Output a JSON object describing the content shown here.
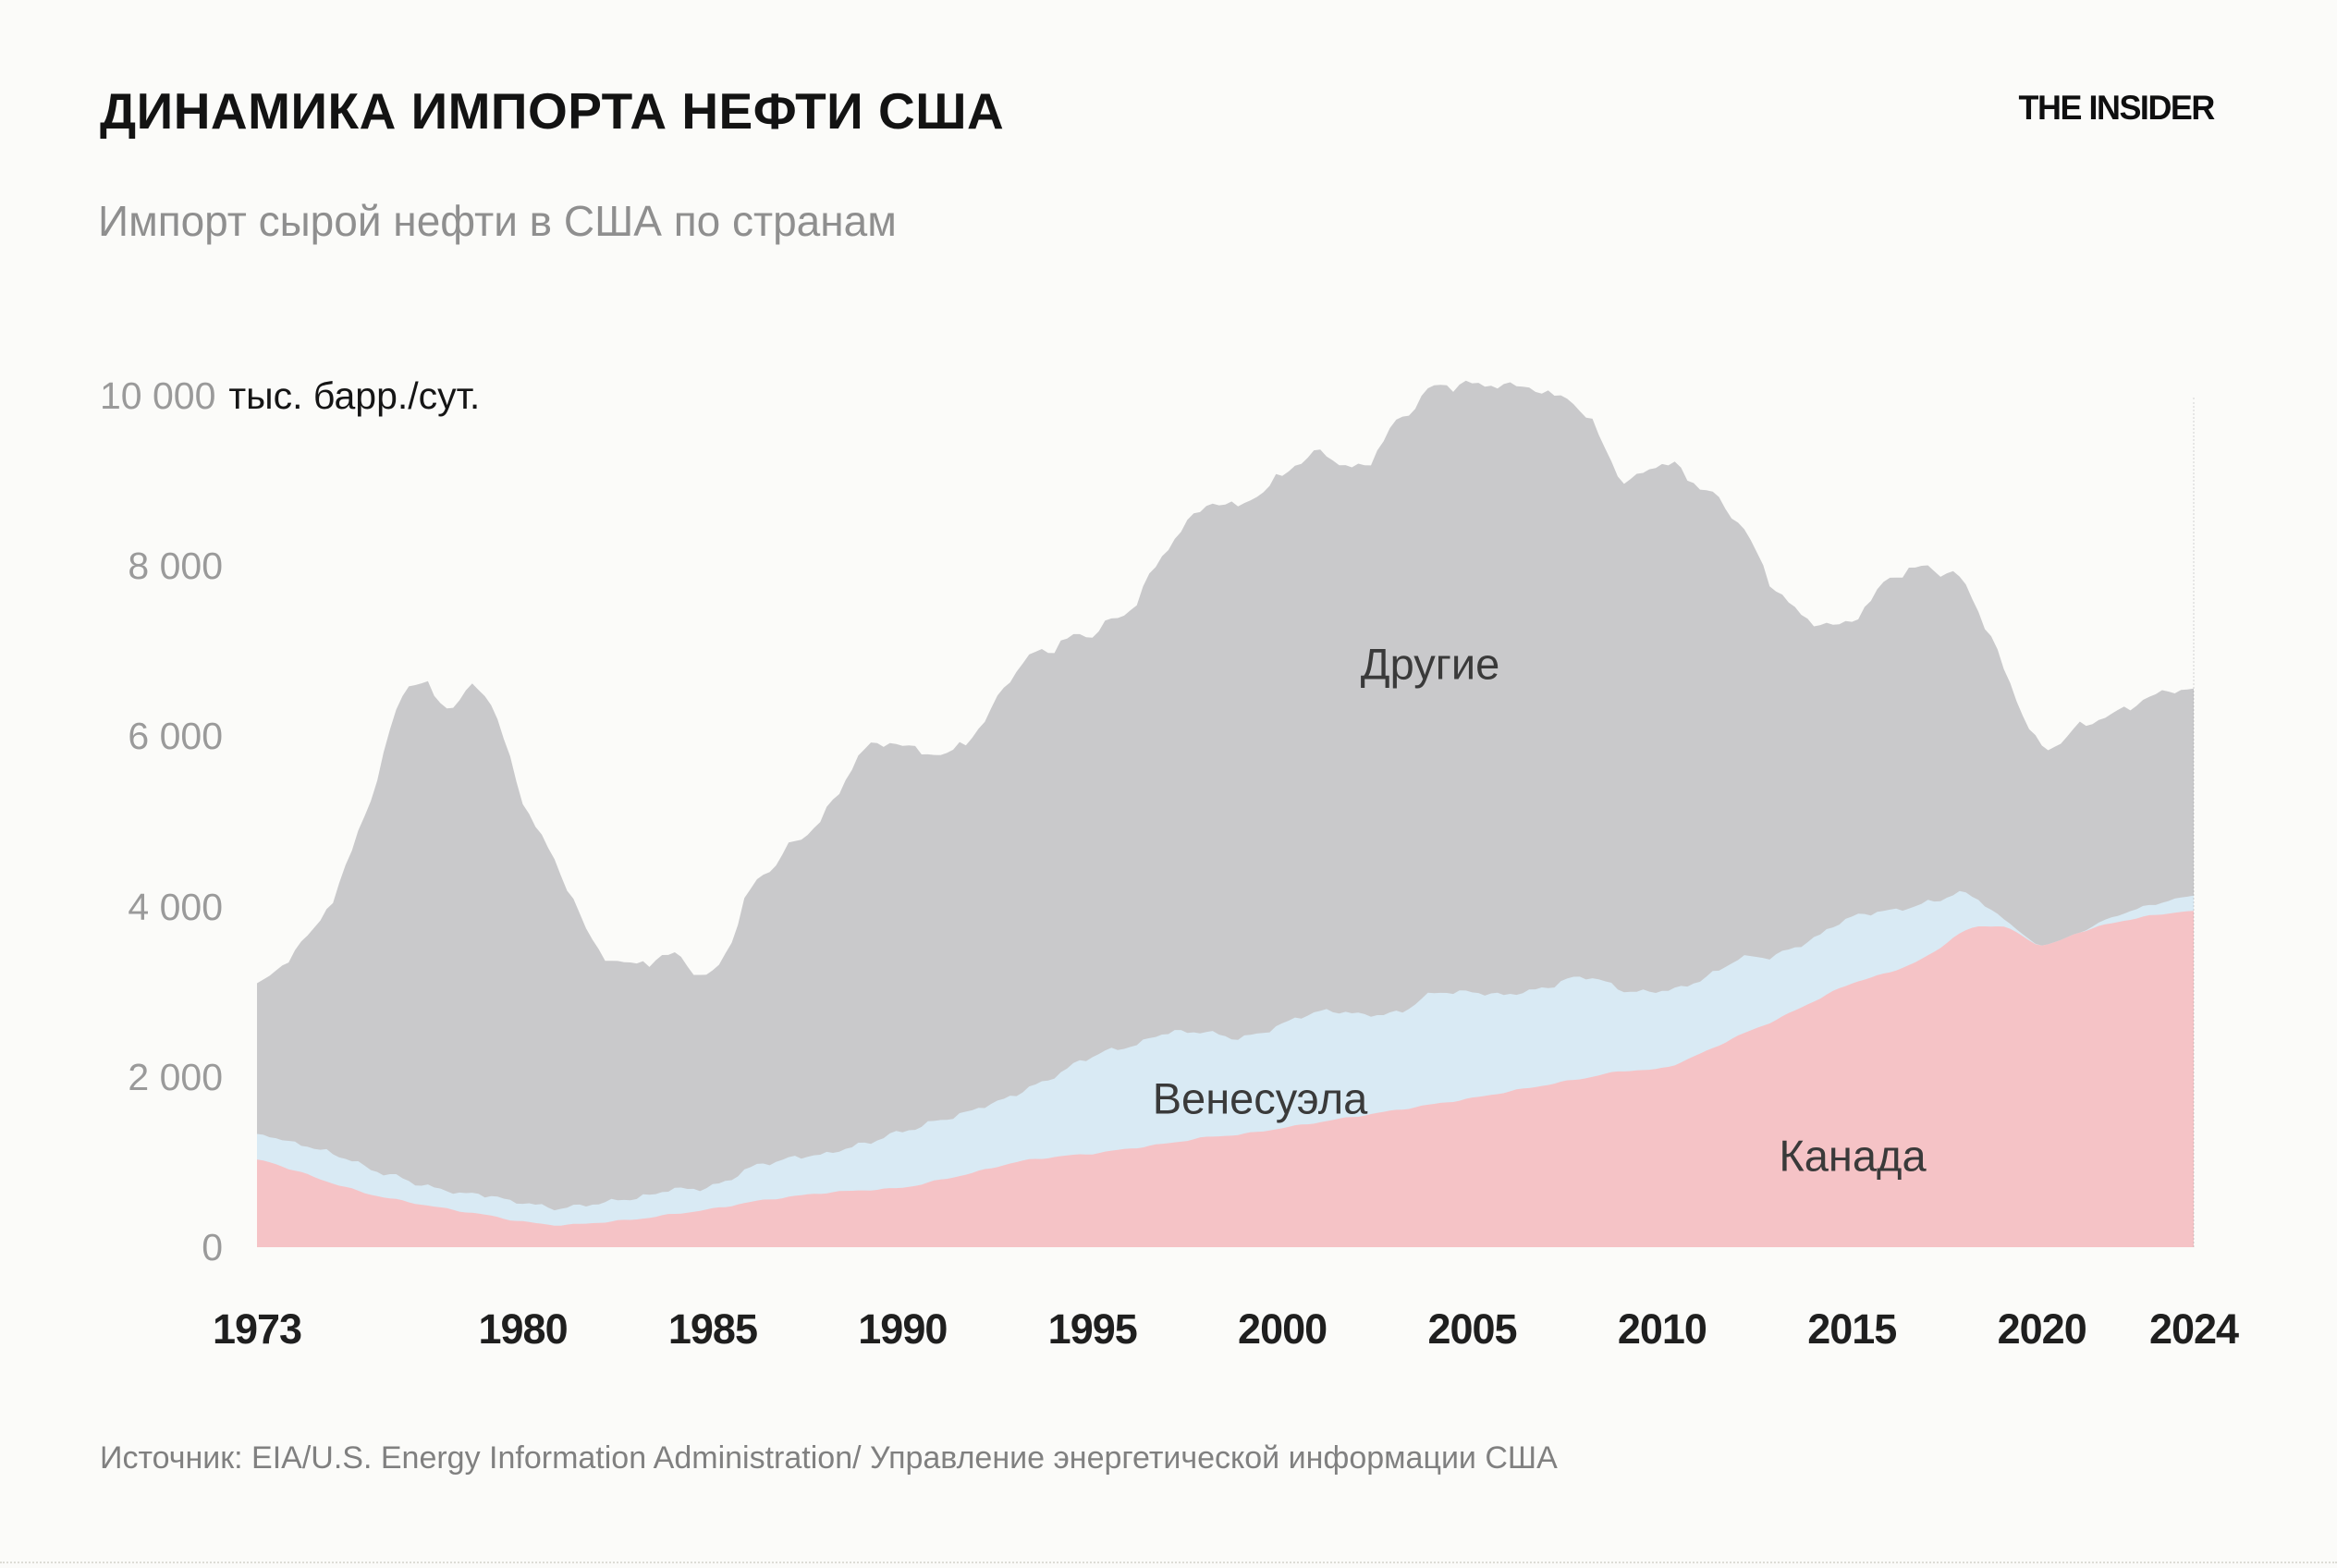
{
  "page": {
    "background": "#fbfbf9"
  },
  "header": {
    "title": "ДИНАМИКА ИМПОРТА НЕФТИ США",
    "brand": "THE INSIDER",
    "subtitle": "Импорт сырой нефти в США по странам"
  },
  "axis": {
    "y_top_tick": "10 000",
    "y_unit": "тыс. барр./сут.",
    "y_ticks": [
      {
        "label": "8 000",
        "value": 8000
      },
      {
        "label": "6 000",
        "value": 6000
      },
      {
        "label": "4 000",
        "value": 4000
      },
      {
        "label": "2 000",
        "value": 2000
      },
      {
        "label": "0",
        "value": 0
      }
    ],
    "x_ticks": [
      {
        "label": "1973",
        "year": 1973
      },
      {
        "label": "1980",
        "year": 1980
      },
      {
        "label": "1985",
        "year": 1985
      },
      {
        "label": "1990",
        "year": 1990
      },
      {
        "label": "1995",
        "year": 1995
      },
      {
        "label": "2000",
        "year": 2000
      },
      {
        "label": "2005",
        "year": 2005
      },
      {
        "label": "2010",
        "year": 2010
      },
      {
        "label": "2015",
        "year": 2015
      },
      {
        "label": "2020",
        "year": 2020
      },
      {
        "label": "2024",
        "year": 2024
      }
    ]
  },
  "labels": {
    "others": "Другие",
    "venezuela": "Венесуэла",
    "canada": "Канада"
  },
  "source": "Источник: EIA/U.S. Energy Information Administration/ Управление энергетической информации США",
  "colors": {
    "background": "#fbfbf9",
    "others_area": "#c9c9cb",
    "venezuela_area": "#d9eaf4",
    "canada_area": "#f5c3c6",
    "title_text": "#131313",
    "subtitle_text": "#8f8f8f",
    "y_tick_text": "#9a9a9a",
    "x_tick_text": "#1f1f1f",
    "area_label_text": "#3a3a3a",
    "source_text": "#808080"
  },
  "chart_data": {
    "type": "area",
    "stacked": true,
    "title": "Импорт сырой нефти в США по странам",
    "ylabel": "тыс. барр./сут.",
    "ylim": [
      0,
      10000
    ],
    "xlim": [
      1973,
      2024
    ],
    "grid": false,
    "legend": "inline-area-labels",
    "x": [
      1973,
      1974,
      1975,
      1976,
      1977,
      1978,
      1979,
      1980,
      1981,
      1982,
      1983,
      1984,
      1985,
      1986,
      1987,
      1988,
      1989,
      1990,
      1991,
      1992,
      1993,
      1994,
      1995,
      1996,
      1997,
      1998,
      1999,
      2000,
      2001,
      2002,
      2003,
      2004,
      2005,
      2006,
      2007,
      2008,
      2009,
      2010,
      2011,
      2012,
      2013,
      2014,
      2015,
      2016,
      2017,
      2018,
      2019,
      2020,
      2021,
      2022,
      2023,
      2024
    ],
    "series": [
      {
        "key": "canada",
        "name": "Канада",
        "color": "#f5c3c6",
        "values": [
          1030,
          900,
          750,
          620,
          530,
          450,
          380,
          300,
          260,
          290,
          330,
          390,
          450,
          530,
          590,
          640,
          670,
          700,
          790,
          890,
          1000,
          1060,
          1100,
          1160,
          1220,
          1290,
          1330,
          1400,
          1470,
          1540,
          1610,
          1680,
          1750,
          1830,
          1910,
          1990,
          2070,
          2100,
          2270,
          2480,
          2670,
          2890,
          3100,
          3230,
          3420,
          3720,
          3760,
          3550,
          3700,
          3820,
          3900,
          3950
        ]
      },
      {
        "key": "venezuela",
        "name": "Венесуэла",
        "color": "#d9eaf4",
        "values": [
          300,
          320,
          350,
          300,
          250,
          210,
          230,
          220,
          200,
          230,
          250,
          290,
          260,
          400,
          450,
          460,
          550,
          660,
          700,
          740,
          800,
          950,
          1150,
          1200,
          1300,
          1230,
          1130,
          1220,
          1300,
          1200,
          1140,
          1300,
          1240,
          1140,
          1150,
          1190,
          950,
          910,
          860,
          900,
          760,
          740,
          780,
          720,
          620,
          430,
          90,
          0,
          0,
          80,
          130,
          180
        ]
      },
      {
        "key": "others",
        "name": "Другие",
        "color": "#c9c9cb",
        "values": [
          1770,
          2257,
          3005,
          4367,
          5835,
          5696,
          5909,
          4743,
          3936,
          2968,
          2749,
          2746,
          2491,
          3248,
          3634,
          4007,
          4623,
          4534,
          4292,
          4453,
          4987,
          5053,
          4980,
          5148,
          5705,
          6186,
          6271,
          6451,
          6558,
          6400,
          6915,
          7108,
          7136,
          7148,
          6971,
          6603,
          5993,
          6203,
          5805,
          5147,
          4300,
          3714,
          3483,
          3900,
          3929,
          3607,
          2945,
          2326,
          2414,
          2381,
          2454,
          2430
        ]
      }
    ]
  }
}
